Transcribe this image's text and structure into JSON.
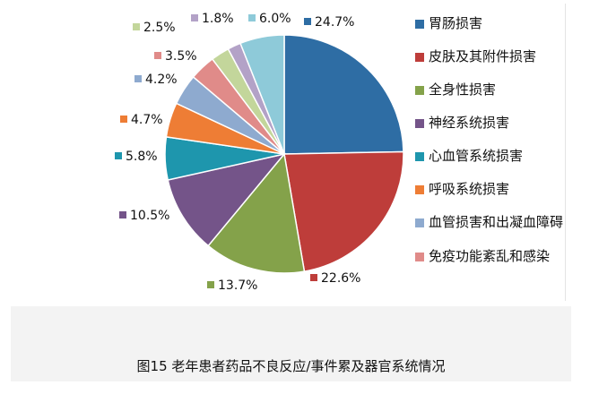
{
  "chart_data": {
    "type": "pie",
    "start": "top",
    "direction": "clockwise",
    "slices": [
      {
        "label": "胃肠损害",
        "value": 24.7,
        "text": "24.7%",
        "color": "#2e6da4"
      },
      {
        "label": "皮肤及其附件损害",
        "value": 22.6,
        "text": "22.6%",
        "color": "#be3d3a"
      },
      {
        "label": "全身性损害",
        "value": 13.7,
        "text": "13.7%",
        "color": "#84a24a"
      },
      {
        "label": "神经系统损害",
        "value": 10.5,
        "text": "10.5%",
        "color": "#745489"
      },
      {
        "label": "心血管系统损害",
        "value": 5.8,
        "text": "5.8%",
        "color": "#1e96ad"
      },
      {
        "label": "呼吸系统损害",
        "value": 4.7,
        "text": "4.7%",
        "color": "#ee7d35"
      },
      {
        "label": "血管损害和出凝血障碍",
        "value": 4.2,
        "text": "4.2%",
        "color": "#8eaacf"
      },
      {
        "label": "免疫功能紊乱和感染",
        "value": 3.5,
        "text": "3.5%",
        "color": "#e08b89"
      },
      {
        "label": "",
        "value": 2.5,
        "text": "2.5%",
        "color": "#c3d69b"
      },
      {
        "label": "",
        "value": 1.8,
        "text": "1.8%",
        "color": "#b3a2c7"
      },
      {
        "label": "",
        "value": 6.0,
        "text": "6.0%",
        "color": "#8ecad9"
      }
    ],
    "legend_position": "right",
    "legend": [
      "胃肠损害",
      "皮肤及其附件损害",
      "全身性损害",
      "神经系统损害",
      "心血管系统损害",
      "呼吸系统损害",
      "血管损害和出凝血障碍",
      "免疫功能紊乱和感染"
    ]
  },
  "caption": "图15 老年患者药品不良反应/事件累及器官系统情况"
}
